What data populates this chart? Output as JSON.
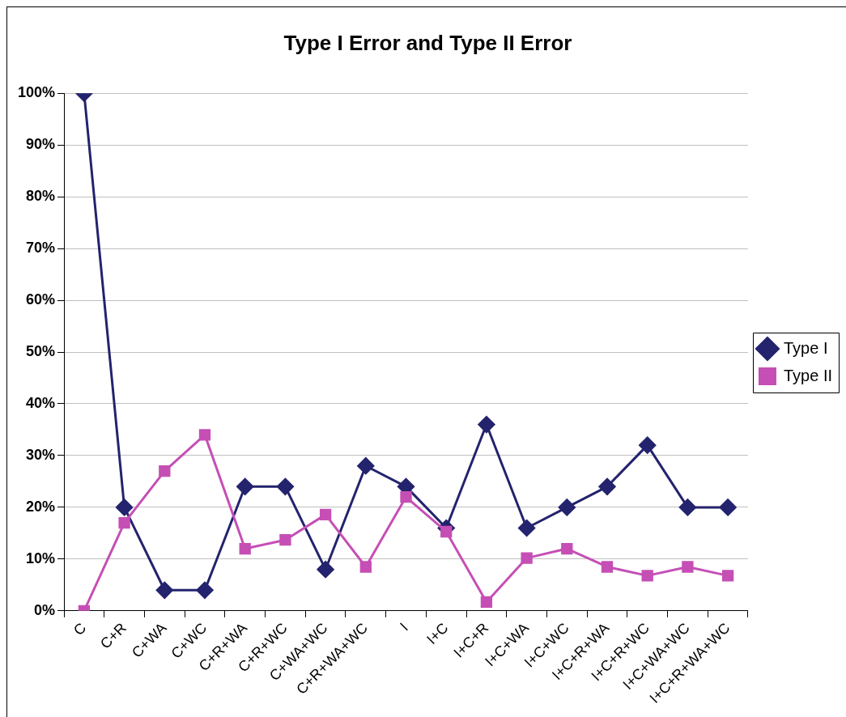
{
  "chart_data": {
    "type": "line",
    "title": "Type I Error and Type II Error",
    "categories": [
      "C",
      "C+R",
      "C+WA",
      "C+WC",
      "C+R+WA",
      "C+R+WC",
      "C+WA+WC",
      "C+R+WA+WC",
      "I",
      "I+C",
      "I+C+R",
      "I+C+WA",
      "I+C+WC",
      "I+C+R+WA",
      "I+C+R+WC",
      "I+C+WA+WC",
      "I+C+R+WA+WC"
    ],
    "series": [
      {
        "name": "Type I",
        "color": "#23236e",
        "marker": "diamond",
        "values": [
          100,
          20,
          4,
          4,
          24,
          24,
          8,
          28,
          24,
          16,
          36,
          16,
          20,
          24,
          32,
          20,
          20
        ]
      },
      {
        "name": "Type II",
        "color": "#c54fb5",
        "marker": "square",
        "values": [
          0,
          17,
          27,
          34,
          12,
          13.7,
          18.6,
          8.5,
          22,
          15.3,
          1.7,
          10.2,
          12,
          8.5,
          6.8,
          8.5,
          6.8
        ]
      }
    ],
    "ylim": [
      0,
      100
    ],
    "yticks": [
      {
        "value": 0,
        "label": "0%"
      },
      {
        "value": 10,
        "label": "10%"
      },
      {
        "value": 20,
        "label": "20%"
      },
      {
        "value": 30,
        "label": "30%"
      },
      {
        "value": 40,
        "label": "40%"
      },
      {
        "value": 50,
        "label": "50%"
      },
      {
        "value": 60,
        "label": "60%"
      },
      {
        "value": 70,
        "label": "70%"
      },
      {
        "value": 80,
        "label": "80%"
      },
      {
        "value": 90,
        "label": "90%"
      },
      {
        "value": 100,
        "label": "100%"
      }
    ],
    "grid": "y",
    "legend": "right",
    "line_style": "solid"
  }
}
